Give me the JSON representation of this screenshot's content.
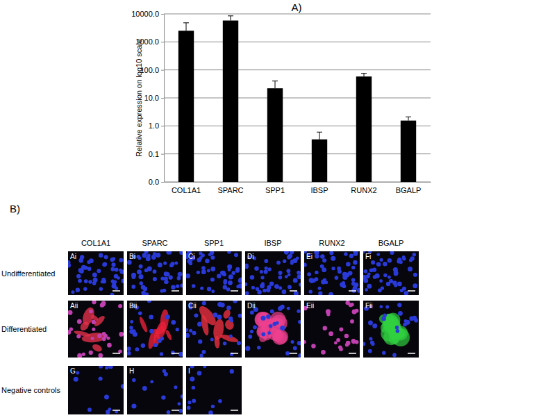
{
  "chart_data": {
    "type": "bar",
    "title": "A)",
    "y_label": "Relative expression on log10 scale",
    "categories": [
      "COL1A1",
      "SPARC",
      "SPP1",
      "IBSP",
      "RUNX2",
      "BGALP"
    ],
    "values": [
      2500,
      5800,
      22,
      0.33,
      58,
      1.55
    ],
    "errors": [
      2300,
      2700,
      18,
      0.27,
      17,
      0.55
    ],
    "color": "#000000",
    "log": "y",
    "grid": true,
    "ylim": [
      0.01,
      10000
    ],
    "yticks": [
      {
        "value": 0.01,
        "label": "0.0"
      },
      0.1,
      {
        "value": 1,
        "label": "1.0"
      },
      {
        "value": 10,
        "label": "10.0"
      },
      {
        "value": 100,
        "label": "100.0"
      },
      {
        "value": 1000,
        "label": "1000.0"
      },
      {
        "value": 10000,
        "label": "10000.0"
      }
    ]
  },
  "image_grid": {
    "title": "B)",
    "columns": [
      "COL1A1",
      "SPARC",
      "SPP1",
      "IBSP",
      "RUNX2",
      "BGALP"
    ],
    "rows": [
      {
        "label": "Undifferentiated",
        "panels": [
          "Ai",
          "Bi",
          "Ci",
          "Di",
          "Ei",
          "Fi"
        ]
      },
      {
        "label": "Differentiated",
        "panels": [
          "Aii",
          "Bii",
          "Cii",
          "Dii",
          "Eii",
          "Fii"
        ]
      },
      {
        "label": "Negative controls",
        "panels": [
          "G",
          "H",
          "I"
        ]
      }
    ]
  }
}
